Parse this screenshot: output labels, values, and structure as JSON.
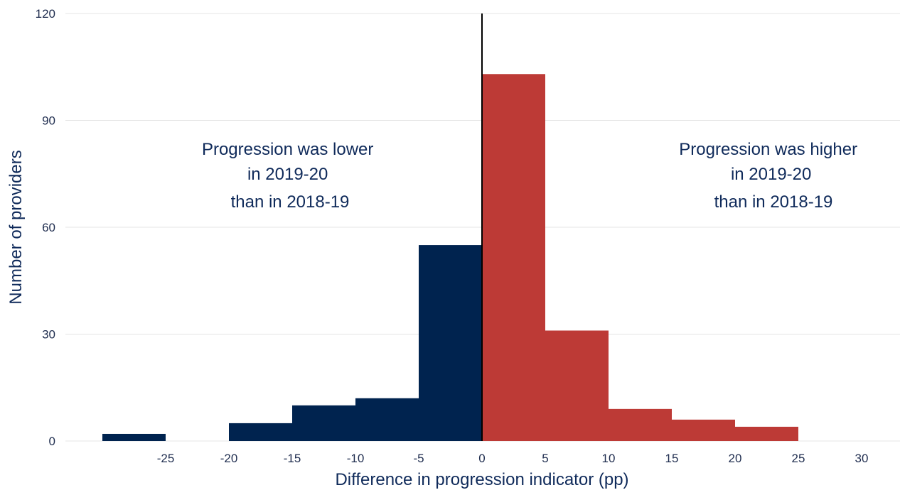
{
  "chart_data": {
    "type": "bar",
    "title": "",
    "xlabel": "Difference in progression indicator (pp)",
    "ylabel": "Number of providers",
    "xlim": [
      -30,
      30
    ],
    "ylim": [
      0,
      120
    ],
    "x_ticks": [
      -25,
      -20,
      -15,
      -10,
      -5,
      0,
      5,
      10,
      15,
      20,
      25,
      30
    ],
    "y_ticks": [
      0,
      30,
      60,
      90,
      120
    ],
    "grid": "horizontal",
    "bins": [
      {
        "from": -30,
        "to": -25,
        "value": 2,
        "group": "lower"
      },
      {
        "from": -20,
        "to": -15,
        "value": 5,
        "group": "lower"
      },
      {
        "from": -15,
        "to": -10,
        "value": 10,
        "group": "lower"
      },
      {
        "from": -10,
        "to": -5,
        "value": 12,
        "group": "lower"
      },
      {
        "from": -5,
        "to": 0,
        "value": 55,
        "group": "lower"
      },
      {
        "from": 0,
        "to": 5,
        "value": 103,
        "group": "higher"
      },
      {
        "from": 5,
        "to": 10,
        "value": 31,
        "group": "higher"
      },
      {
        "from": 10,
        "to": 15,
        "value": 9,
        "group": "higher"
      },
      {
        "from": 15,
        "to": 20,
        "value": 6,
        "group": "higher"
      },
      {
        "from": 20,
        "to": 25,
        "value": 4,
        "group": "higher"
      }
    ],
    "colors": {
      "lower": "#00234f",
      "higher": "#bd3a36",
      "zero_line": "#000000",
      "grid": "#e4e4e4"
    },
    "annotations": {
      "lower": [
        "Progression was lower",
        "in 2019-20",
        "than in 2018-19"
      ],
      "higher": [
        "Progression was higher",
        "in 2019-20",
        "than in 2018-19"
      ]
    }
  }
}
